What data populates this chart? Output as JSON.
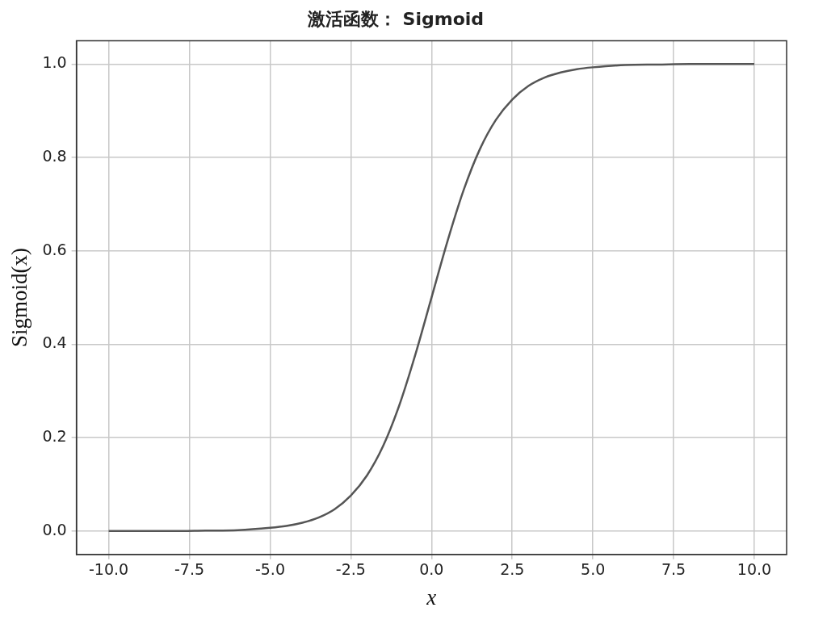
{
  "chart_data": {
    "type": "line",
    "title": "激活函数： Sigmoid",
    "xlabel": "x",
    "ylabel": "Sigmoid(x)",
    "x": [
      -10,
      -9,
      -8,
      -7,
      -6,
      -5,
      -4.5,
      -4,
      -3.5,
      -3,
      -2.5,
      -2,
      -1.5,
      -1,
      -0.5,
      0,
      0.5,
      1,
      1.5,
      2,
      2.5,
      3,
      3.5,
      4,
      4.5,
      5,
      6,
      7,
      8,
      9,
      10
    ],
    "series": [
      {
        "color": "#555555",
        "values": [
          0.0,
          0.0,
          0.0,
          0.001,
          0.002,
          0.007,
          0.011,
          0.018,
          0.029,
          0.047,
          0.076,
          0.119,
          0.182,
          0.269,
          0.378,
          0.5,
          0.622,
          0.731,
          0.818,
          0.881,
          0.924,
          0.953,
          0.971,
          0.982,
          0.989,
          0.993,
          0.998,
          0.999,
          1.0,
          1.0,
          1.0
        ]
      }
    ],
    "xlim": [
      -11,
      11
    ],
    "ylim": [
      -0.05,
      1.05
    ],
    "xticks": [
      {
        "value": -10,
        "label": "-10.0"
      },
      {
        "value": -7.5,
        "label": "-7.5"
      },
      {
        "value": -5,
        "label": "-5.0"
      },
      {
        "value": -2.5,
        "label": "-2.5"
      },
      {
        "value": 0,
        "label": "0.0"
      },
      {
        "value": 2.5,
        "label": "2.5"
      },
      {
        "value": 5,
        "label": "5.0"
      },
      {
        "value": 7.5,
        "label": "7.5"
      },
      {
        "value": 10,
        "label": "10.0"
      }
    ],
    "yticks": [
      {
        "value": 0,
        "label": "0.0"
      },
      {
        "value": 0.2,
        "label": "0.2"
      },
      {
        "value": 0.4,
        "label": "0.4"
      },
      {
        "value": 0.6,
        "label": "0.6"
      },
      {
        "value": 0.8,
        "label": "0.8"
      },
      {
        "value": 1,
        "label": "1.0"
      }
    ],
    "grid": true,
    "legend": false,
    "marker": "none",
    "line_style": "solid"
  }
}
